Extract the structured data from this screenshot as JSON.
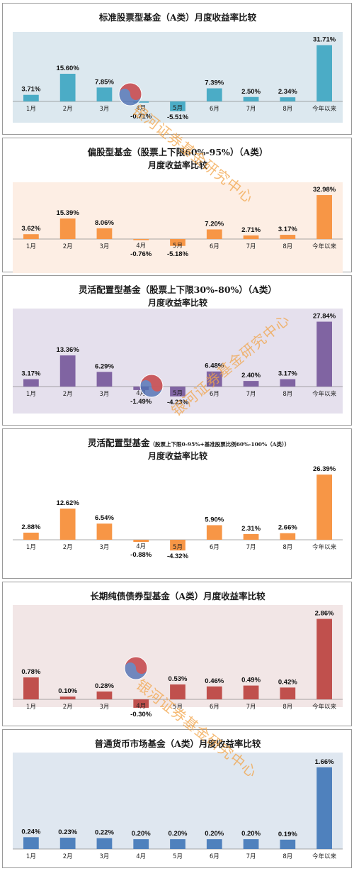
{
  "chart_data": [
    {
      "type": "bar",
      "title": "标准股票型基金（A类）月度收益率比较",
      "categories": [
        "1月",
        "2月",
        "3月",
        "4月",
        "5月",
        "6月",
        "7月",
        "8月",
        "今年以来"
      ],
      "values": [
        3.71,
        15.6,
        7.85,
        -0.71,
        -5.51,
        7.39,
        2.5,
        2.34,
        31.71
      ],
      "value_labels": [
        "3.71%",
        "15.60%",
        "7.85%",
        "-0.71%",
        "-5.51%",
        "7.39%",
        "2.50%",
        "2.34%",
        "31.71%"
      ],
      "bar_color": "#4bacc6",
      "plot_bg": "#dce8ef",
      "ylim": [
        -6,
        32
      ]
    },
    {
      "type": "bar",
      "title": "偏股型基金（股票上下限60%-95%）（A类）",
      "subtitle": "月度收益率比较",
      "categories": [
        "1月",
        "2月",
        "3月",
        "4月",
        "5月",
        "6月",
        "7月",
        "8月",
        "今年以来"
      ],
      "values": [
        3.62,
        15.39,
        8.06,
        -0.76,
        -5.18,
        7.2,
        2.71,
        3.17,
        32.98
      ],
      "value_labels": [
        "3.62%",
        "15.39%",
        "8.06%",
        "-0.76%",
        "-5.18%",
        "7.20%",
        "2.71%",
        "3.17%",
        "32.98%"
      ],
      "bar_color": "#f79646",
      "plot_bg": "#fdeee4",
      "ylim": [
        -6,
        33
      ]
    },
    {
      "type": "bar",
      "title": "灵活配置型基金（股票上下限30%-80%）（A类）",
      "subtitle": "月度收益率比较",
      "categories": [
        "1月",
        "2月",
        "3月",
        "4月",
        "5月",
        "6月",
        "7月",
        "8月",
        "今年以来"
      ],
      "values": [
        3.17,
        13.36,
        6.29,
        -1.49,
        -4.23,
        6.48,
        2.4,
        3.17,
        27.84
      ],
      "value_labels": [
        "3.17%",
        "13.36%",
        "6.29%",
        "-1.49%",
        "-4.23%",
        "6.48%",
        "2.40%",
        "3.17%",
        "27.84%"
      ],
      "bar_color": "#8064a2",
      "plot_bg": "#e5e0ed",
      "ylim": [
        -5,
        28
      ]
    },
    {
      "type": "bar",
      "title": "灵活配置型基金",
      "title_note": "（股票上下限0-95%+基准股票比例60%-100%（A类））",
      "subtitle": "月度收益率比较",
      "categories": [
        "1月",
        "2月",
        "3月",
        "4月",
        "5月",
        "6月",
        "7月",
        "8月",
        "今年以来"
      ],
      "values": [
        2.88,
        12.62,
        6.54,
        -0.88,
        -4.32,
        5.9,
        2.31,
        2.66,
        26.39
      ],
      "value_labels": [
        "2.88%",
        "12.62%",
        "6.54%",
        "-0.88%",
        "-4.32%",
        "5.90%",
        "2.31%",
        "2.66%",
        "26.39%"
      ],
      "bar_color": "#f79646",
      "plot_bg": "#ffffff",
      "ylim": [
        -5,
        27
      ]
    },
    {
      "type": "bar",
      "title": "长期纯债债券型基金（A类）月度收益率比较",
      "categories": [
        "1月",
        "2月",
        "3月",
        "4月",
        "5月",
        "6月",
        "7月",
        "8月",
        "今年以来"
      ],
      "values": [
        0.78,
        0.1,
        0.28,
        -0.3,
        0.53,
        0.46,
        0.49,
        0.42,
        2.86
      ],
      "value_labels": [
        "0.78%",
        "0.10%",
        "0.28%",
        "-0.30%",
        "0.53%",
        "0.46%",
        "0.49%",
        "0.42%",
        "2.86%"
      ],
      "bar_color": "#c0504d",
      "plot_bg": "#f2e6e6",
      "ylim": [
        -0.4,
        2.9
      ]
    },
    {
      "type": "bar",
      "title": "普通货币市场基金（A类）月度收益率比较",
      "categories": [
        "1月",
        "2月",
        "3月",
        "4月",
        "5月",
        "6月",
        "7月",
        "8月",
        "今年以来"
      ],
      "values": [
        0.24,
        0.23,
        0.22,
        0.2,
        0.2,
        0.2,
        0.2,
        0.19,
        1.66
      ],
      "value_labels": [
        "0.24%",
        "0.23%",
        "0.22%",
        "0.20%",
        "0.20%",
        "0.20%",
        "0.20%",
        "0.19%",
        "1.66%"
      ],
      "bar_color": "#4f81bd",
      "plot_bg": "#dfe7f0",
      "ylim": [
        0,
        1.7
      ]
    }
  ],
  "watermarks": [
    "银河证券基金研究中心",
    "银河证券基金研究中心",
    "银河证券基金研究中心"
  ]
}
